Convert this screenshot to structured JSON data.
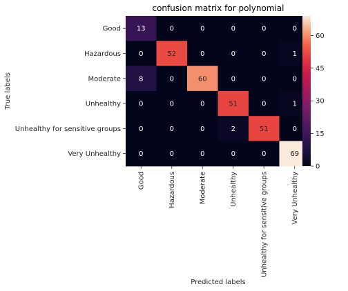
{
  "chart_data": {
    "type": "heatmap",
    "title": "confusion matrix for polynomial",
    "xlabel": "Predicted labels",
    "ylabel": "True labels",
    "x_categories": [
      "Good",
      "Hazardous",
      "Moderate",
      "Unhealthy",
      "Unhealthy for sensitive groups",
      "Very Unhealthy"
    ],
    "y_categories": [
      "Good",
      "Hazardous",
      "Moderate",
      "Unhealthy",
      "Unhealthy for sensitive groups",
      "Very Unhealthy"
    ],
    "values": [
      [
        13,
        0,
        0,
        0,
        0,
        0
      ],
      [
        0,
        52,
        0,
        0,
        0,
        1
      ],
      [
        8,
        0,
        60,
        0,
        0,
        0
      ],
      [
        0,
        0,
        0,
        51,
        0,
        1
      ],
      [
        0,
        0,
        0,
        2,
        51,
        0
      ],
      [
        0,
        0,
        0,
        0,
        0,
        69
      ]
    ],
    "colorbar": {
      "min": 0,
      "max": 69,
      "ticks": [
        0,
        15,
        30,
        45,
        60
      ]
    },
    "colormap": "rocket"
  }
}
